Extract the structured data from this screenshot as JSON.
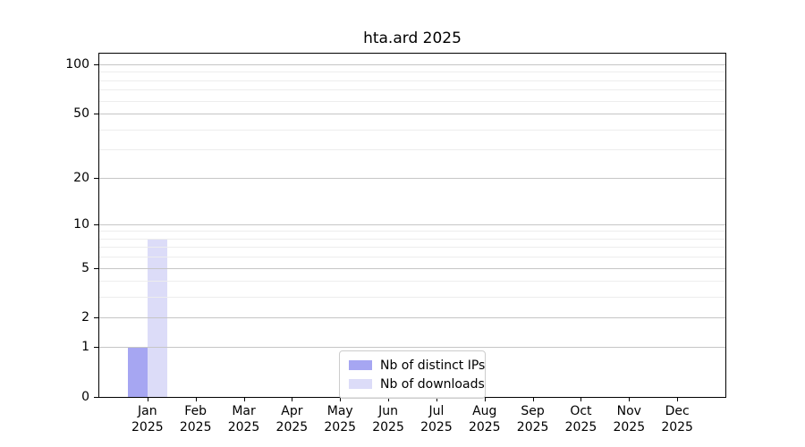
{
  "chart_data": {
    "type": "bar",
    "title": "hta.ard 2025",
    "categories": [
      "Jan",
      "Feb",
      "Mar",
      "Apr",
      "May",
      "Jun",
      "Jul",
      "Aug",
      "Sep",
      "Oct",
      "Nov",
      "Dec"
    ],
    "x_year_label": "2025",
    "series": [
      {
        "name": "Nb of distinct IPs",
        "color": "#a6a6f2",
        "values": [
          1,
          0,
          0,
          0,
          0,
          0,
          0,
          0,
          0,
          0,
          0,
          0
        ]
      },
      {
        "name": "Nb of downloads",
        "color": "#dcdcf8",
        "values": [
          8,
          0,
          0,
          0,
          0,
          0,
          0,
          0,
          0,
          0,
          0,
          0
        ]
      }
    ],
    "yticks": [
      0,
      1,
      2,
      5,
      10,
      20,
      50,
      100
    ],
    "minor_gridlines": [
      3,
      4,
      6,
      7,
      8,
      9,
      30,
      40,
      60,
      70,
      80,
      90
    ],
    "scale": "log1p",
    "ylim": [
      0,
      116
    ],
    "xlabel": "",
    "ylabel": "",
    "grid": true,
    "legend_position": "lower center"
  },
  "colors": {
    "major_grid": "#c6c6c6",
    "minor_grid": "#ededed",
    "axis": "#000000",
    "background": "#ffffff"
  }
}
